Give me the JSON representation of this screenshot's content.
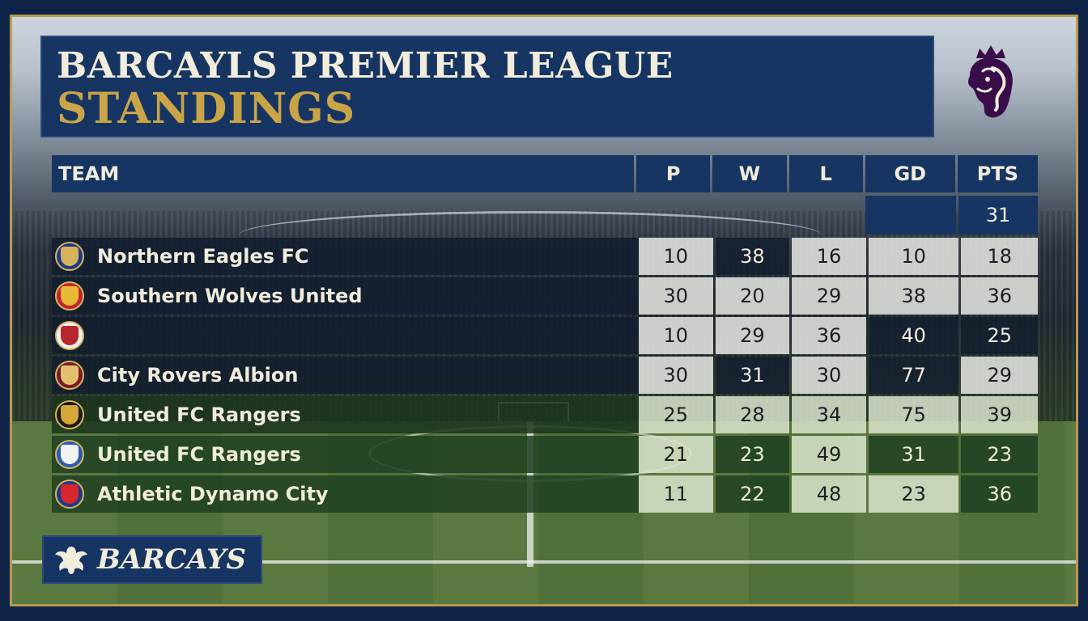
{
  "header": {
    "title": "BARCAYLS PREMIER LEAGUE",
    "subtitle": "STANDINGS",
    "logo_icon": "premier-league-lion-icon"
  },
  "table": {
    "columns": [
      "TEAM",
      "P",
      "W",
      "L",
      "GD",
      "PTS"
    ],
    "extra_row": {
      "pts": "31"
    },
    "rows": [
      {
        "team": "Northern Eagles FC",
        "p": "10",
        "w": "38",
        "l": "16",
        "gd": "10",
        "pts": "18",
        "crest_colors": [
          "#1d3a8a",
          "#d6b35a"
        ]
      },
      {
        "team": "Southern Wolves United",
        "p": "30",
        "w": "20",
        "l": "29",
        "gd": "38",
        "pts": "36",
        "crest_colors": [
          "#c0262d",
          "#e8b838"
        ]
      },
      {
        "team": "",
        "p": "10",
        "w": "29",
        "l": "36",
        "gd": "40",
        "pts": "25",
        "crest_colors": [
          "#f2f2f2",
          "#b8262d"
        ]
      },
      {
        "team": "City Rovers Albion",
        "p": "30",
        "w": "31",
        "l": "30",
        "gd": "77",
        "pts": "29",
        "crest_colors": [
          "#7a1a2a",
          "#e3c070"
        ]
      },
      {
        "team": "United FC Rangers",
        "p": "25",
        "w": "28",
        "l": "34",
        "gd": "75",
        "pts": "39",
        "crest_colors": [
          "#1a1a1a",
          "#d6a63a"
        ]
      },
      {
        "team": "United FC Rangers",
        "p": "21",
        "w": "23",
        "l": "49",
        "gd": "31",
        "pts": "23",
        "crest_colors": [
          "#2a5cb8",
          "#f2f2f2"
        ]
      },
      {
        "team": "Athletic Dynamo City",
        "p": "11",
        "w": "22",
        "l": "48",
        "gd": "23",
        "pts": "36",
        "crest_colors": [
          "#1d3a8a",
          "#d8262d"
        ]
      }
    ]
  },
  "sponsor": {
    "label": "BARCAYS",
    "icon": "eagle-icon"
  },
  "colors": {
    "navy": "#173562",
    "gold": "#caa548",
    "cream": "#f1ecdc"
  }
}
